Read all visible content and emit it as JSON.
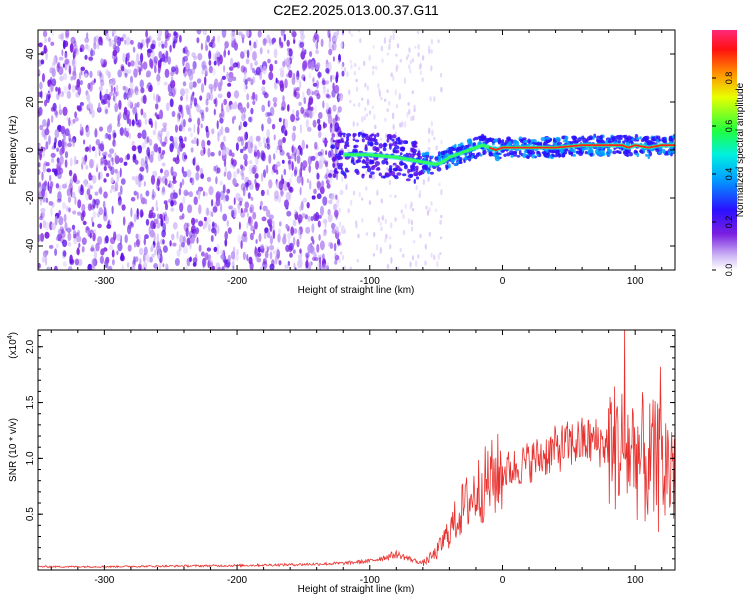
{
  "title": "C2E2.2025.013.00.37.G11",
  "colors": {
    "trace": "#e8322f",
    "spec_low": "#7a1fe0",
    "axis": "#000000",
    "background": "#ffffff"
  },
  "chart_data": [
    {
      "type": "heatmap",
      "title": "C2E2.2025.013.00.37.G11",
      "xlabel": "Height of straight line (km)",
      "ylabel": "Frequency (Hz)",
      "xlim": [
        -350,
        130
      ],
      "ylim": [
        -50,
        50
      ],
      "xticks": [
        -300,
        -200,
        -100,
        0,
        100
      ],
      "yticks": [
        -40,
        -20,
        0,
        20,
        40
      ],
      "colorbar": {
        "label": "Normalized spectral amplitude",
        "range": [
          0.0,
          1.0
        ],
        "ticks": [
          "0.0",
          "0.2",
          "0.4",
          "0.6",
          "0.8"
        ]
      },
      "ridge_frequency": {
        "x": [
          -120,
          -100,
          -80,
          -70,
          -60,
          -50,
          -45,
          -40,
          -35,
          -30,
          -25,
          -20,
          -15,
          -10,
          -5,
          0,
          20,
          40,
          60,
          80,
          90,
          95,
          100,
          110,
          120,
          130
        ],
        "y": [
          -2,
          -2,
          -3,
          -4,
          -5,
          -6,
          -5,
          -3,
          -2,
          -1,
          0,
          1,
          2,
          1,
          0,
          1,
          1,
          1,
          2,
          2,
          2,
          1,
          2,
          1,
          2,
          2
        ]
      }
    },
    {
      "type": "line",
      "xlabel": "Height of straight line (km)",
      "ylabel": "SNR (10 * v/v)",
      "scale_label": "(x10",
      "scale_exponent": "4",
      "xlim": [
        -350,
        130
      ],
      "ylim": [
        0,
        2.15
      ],
      "xticks": [
        -300,
        -200,
        -100,
        0,
        100
      ],
      "yticks": [
        "0.5",
        "1.0",
        "1.5",
        "2.0"
      ],
      "series": [
        {
          "name": "SNR",
          "x": [
            -350,
            -300,
            -200,
            -150,
            -120,
            -100,
            -90,
            -80,
            -70,
            -60,
            -50,
            -40,
            -30,
            -20,
            -10,
            0,
            10,
            20,
            30,
            40,
            50,
            60,
            70,
            80,
            90,
            100,
            110,
            120,
            130
          ],
          "y": [
            0.03,
            0.03,
            0.04,
            0.05,
            0.06,
            0.08,
            0.11,
            0.14,
            0.1,
            0.06,
            0.15,
            0.35,
            0.55,
            0.7,
            0.8,
            0.88,
            0.92,
            0.97,
            1.02,
            1.08,
            1.12,
            1.15,
            1.15,
            1.12,
            1.1,
            1.05,
            0.95,
            0.9,
            0.95
          ]
        }
      ]
    }
  ]
}
